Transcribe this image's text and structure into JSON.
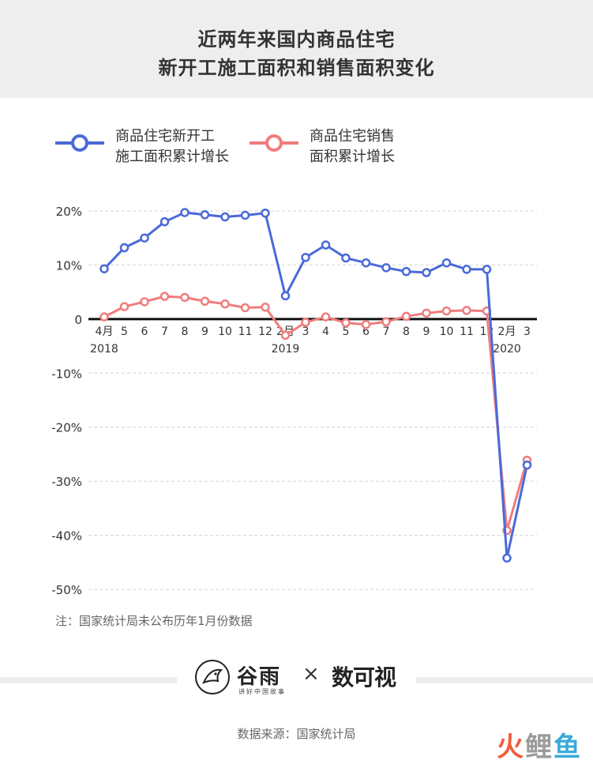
{
  "title_lines": [
    "近两年来国内商品住宅",
    "新开工施工面积和销售面积变化"
  ],
  "legend": [
    {
      "lines": [
        "商品住宅新开工",
        "施工面积累计增长"
      ],
      "color": "#4a6ad8"
    },
    {
      "lines": [
        "商品住宅销售",
        "面积累计增长"
      ],
      "color": "#f07c7c"
    }
  ],
  "chart_data": {
    "type": "line",
    "categories": [
      "4月",
      "5",
      "6",
      "7",
      "8",
      "9",
      "10",
      "11",
      "12",
      "2月",
      "3",
      "4",
      "5",
      "6",
      "7",
      "8",
      "9",
      "10",
      "11",
      "12",
      "2月",
      "3"
    ],
    "year_labels": [
      {
        "text": "2018",
        "at_index": 0
      },
      {
        "text": "2019",
        "at_index": 9
      },
      {
        "text": "2020",
        "at_index": 20
      }
    ],
    "series": [
      {
        "name": "商品住宅新开工施工面积累计增长",
        "color": "#4a6ad8",
        "values": [
          9.3,
          13.2,
          15.0,
          18.0,
          19.7,
          19.3,
          18.9,
          19.2,
          19.6,
          4.3,
          11.4,
          13.7,
          11.3,
          10.4,
          9.5,
          8.8,
          8.6,
          10.4,
          9.2,
          9.2,
          -44.2,
          -27.0
        ]
      },
      {
        "name": "商品住宅销售面积累计增长",
        "color": "#f07c7c",
        "values": [
          0.4,
          2.3,
          3.2,
          4.2,
          4.0,
          3.3,
          2.8,
          2.1,
          2.2,
          -3.0,
          -0.6,
          0.4,
          -0.7,
          -1.0,
          -0.5,
          0.5,
          1.1,
          1.5,
          1.6,
          1.5,
          -39.1,
          -26.1
        ]
      }
    ],
    "yticks": [
      20,
      10,
      0,
      -10,
      -20,
      -30,
      -40,
      -50
    ],
    "ytick_labels": [
      "20%",
      "10%",
      "0",
      "-10%",
      "-20%",
      "-30%",
      "-40%",
      "-50%"
    ],
    "ylim": [
      -50,
      20
    ],
    "grid": true,
    "legend_position": "top-left"
  },
  "note": "注：国家统计局未公布历年1月份数据",
  "logo_gu": "谷雨",
  "logo_gu_sub": "讲好中国故事",
  "logo_x": "×",
  "logo_shu": "数可视",
  "source": "数据来源：国家统计局",
  "watermark_a": "火",
  "watermark_b": "鲤",
  "watermark_c": "鱼"
}
